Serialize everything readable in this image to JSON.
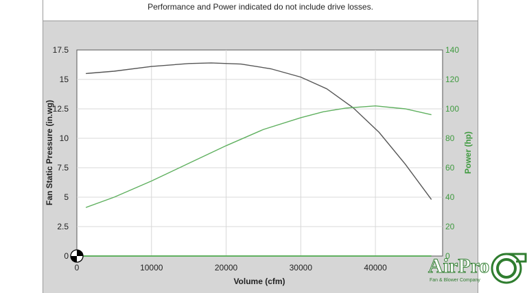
{
  "note": "Performance and Power indicated do not include drive losses.",
  "chart_data": {
    "type": "line",
    "xlabel": "Volume (cfm)",
    "ylabel": "Fan Static Pressure (in.wg)",
    "y2label": "Power (hp)",
    "xlim": [
      0,
      49000
    ],
    "ylim": [
      0,
      17.5
    ],
    "y2lim": [
      0,
      140
    ],
    "x_ticks": [
      0,
      10000,
      20000,
      30000,
      40000
    ],
    "x_tick_labels": [
      "0",
      "10000",
      "20000",
      "30000",
      "40000"
    ],
    "y_ticks": [
      0,
      2.5,
      5,
      7.5,
      10,
      12.5,
      15,
      17.5
    ],
    "y_tick_labels": [
      "0",
      "2.5",
      "5",
      "7.5",
      "10",
      "12.5",
      "15",
      "17.5"
    ],
    "y2_ticks": [
      0,
      20,
      40,
      60,
      80,
      100,
      120,
      140
    ],
    "y2_tick_labels": [
      "0",
      "20",
      "40",
      "60",
      "80",
      "100",
      "120",
      "140"
    ],
    "grid": true,
    "series": [
      {
        "axis": "left",
        "color": "#555555",
        "x": [
          1200,
          5000,
          10000,
          15000,
          18000,
          22000,
          26000,
          30000,
          33500,
          37000,
          40500,
          44000,
          47500
        ],
        "y": [
          15.5,
          15.7,
          16.1,
          16.35,
          16.4,
          16.3,
          15.9,
          15.2,
          14.2,
          12.6,
          10.5,
          7.8,
          4.8
        ]
      },
      {
        "axis": "right",
        "color": "#5fb05f",
        "x": [
          1200,
          5000,
          10000,
          15000,
          20000,
          25000,
          30000,
          33000,
          36000,
          40000,
          44000,
          47500
        ],
        "y": [
          33,
          40,
          51,
          63,
          75,
          86,
          94,
          98,
          100.5,
          102,
          100,
          96
        ]
      },
      {
        "axis": "right",
        "color": "#5fb05f",
        "x": [
          0,
          47500
        ],
        "y": [
          0,
          0
        ]
      }
    ]
  },
  "logo": {
    "name": "AirPro",
    "tagline": "Fan & Blower Company"
  }
}
